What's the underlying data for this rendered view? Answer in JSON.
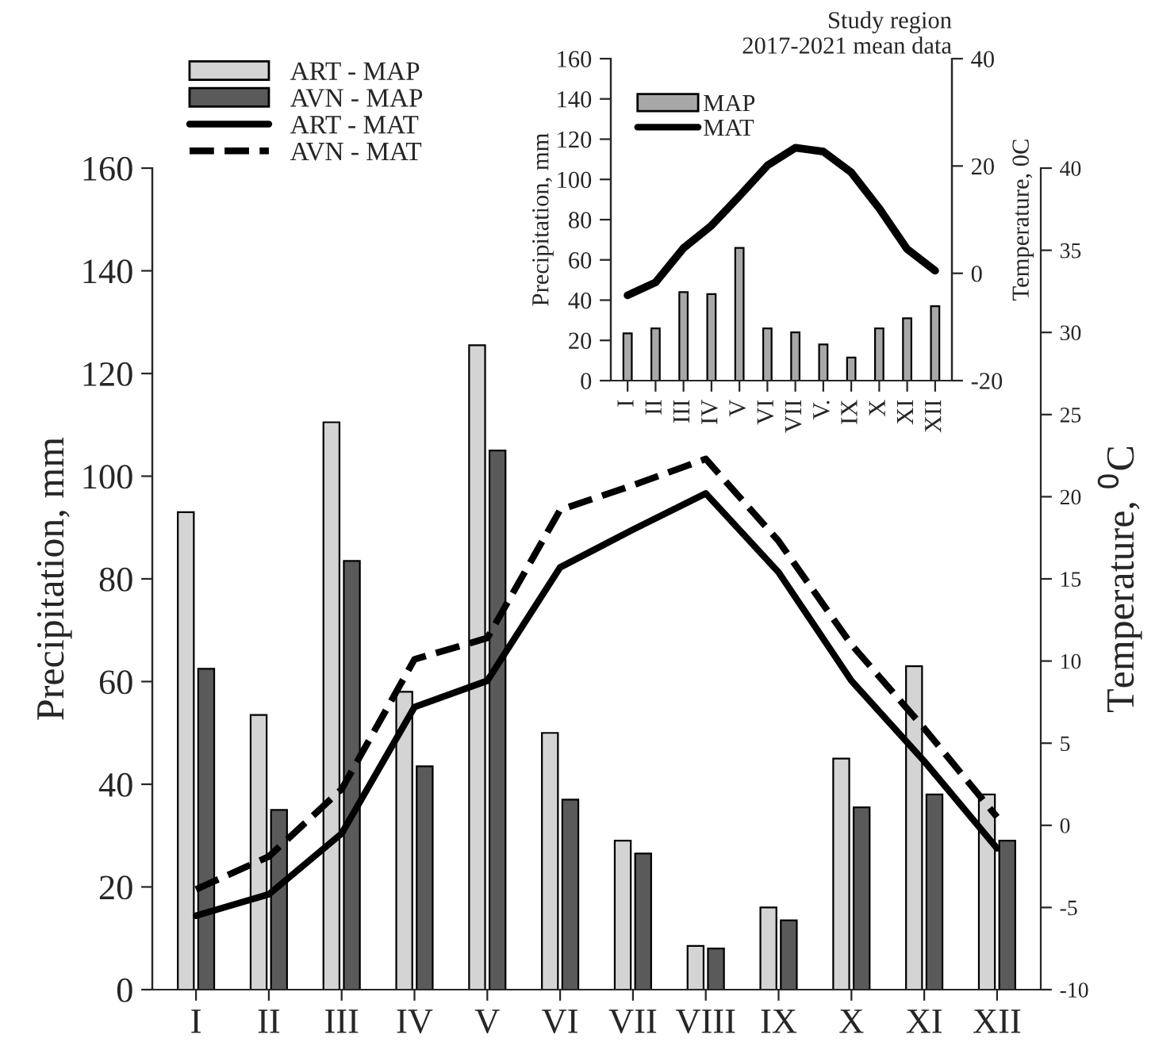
{
  "chart_data": [
    {
      "type": "bar",
      "categories": [
        "I",
        "II",
        "III",
        "IV",
        "V",
        "VI",
        "VII",
        "VIII",
        "IX",
        "X",
        "XI",
        "XII"
      ],
      "ylabel": "Precipitation, mm",
      "y2label": "Temperature, $^{0}$C",
      "ylim": [
        0,
        160
      ],
      "yticks": [
        0,
        20,
        40,
        60,
        80,
        100,
        120,
        140,
        160
      ],
      "y2lim": [
        -10,
        40
      ],
      "y2ticks": [
        -10,
        -5,
        0,
        5,
        10,
        15,
        20,
        25,
        30,
        35,
        40
      ],
      "legend": "top left",
      "grid": false,
      "series": [
        {
          "name": "ART - MAP",
          "color": "#d4d4d4",
          "values": [
            93,
            53.5,
            110.5,
            58,
            125.5,
            50,
            29,
            8.5,
            16,
            45,
            63,
            38
          ]
        },
        {
          "name": "AVN - MAP",
          "color": "#5a5a5a",
          "values": [
            62.5,
            35,
            83.5,
            43.5,
            105,
            37,
            26.5,
            8,
            13.5,
            35.5,
            38,
            29
          ]
        },
        {
          "name": "ART - MAT",
          "type": "line",
          "axis": "y2",
          "color": "#000000",
          "line_style": "solid",
          "values": [
            -5.5,
            -4.2,
            -0.5,
            7.2,
            8.8,
            15.7,
            18,
            20.2,
            15.4,
            8.8,
            3.9,
            -1.4
          ]
        },
        {
          "name": "AVN - MAT",
          "type": "line",
          "axis": "y2",
          "color": "#000000",
          "line_style": "dashed",
          "values": [
            -3.9,
            -1.9,
            2.2,
            10.1,
            11.4,
            19.2,
            20.7,
            22.3,
            17.3,
            11,
            5.9,
            0.5
          ]
        }
      ]
    },
    {
      "type": "bar",
      "title": "Study region\n2017-2021 mean data",
      "categories": [
        "I",
        "II",
        "III",
        "IV",
        "V",
        "VI",
        "VII",
        "V.",
        "IX",
        "X",
        "XI",
        "XII"
      ],
      "ylabel": "Precipitation, mm",
      "y2label": "Temperature, 0C",
      "ylim": [
        0,
        160
      ],
      "yticks": [
        0,
        20,
        40,
        60,
        80,
        100,
        120,
        140,
        160
      ],
      "y2lim": [
        -20,
        40
      ],
      "y2ticks": [
        -20,
        0,
        20,
        40
      ],
      "legend": "top left",
      "grid": false,
      "series": [
        {
          "name": "MAP",
          "color": "#a8a8a8",
          "values": [
            23.5,
            26,
            44,
            43,
            66,
            26,
            24,
            18,
            11.5,
            26,
            31,
            37
          ]
        },
        {
          "name": "MAT",
          "type": "line",
          "axis": "y2",
          "color": "#000000",
          "line_style": "solid",
          "values": [
            -4.1,
            -1.7,
            4.7,
            8.9,
            14.4,
            20.1,
            23.4,
            22.7,
            18.8,
            12.1,
            4.5,
            0.5
          ]
        }
      ]
    }
  ]
}
